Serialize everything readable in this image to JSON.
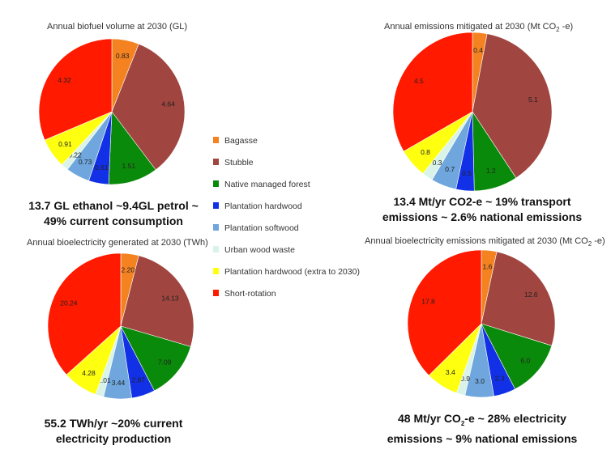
{
  "legend": {
    "items": [
      {
        "label": "Bagasse",
        "color": "#f58220"
      },
      {
        "label": "Stubble",
        "color": "#a0453f"
      },
      {
        "label": "Native managed forest",
        "color": "#0a8a0a"
      },
      {
        "label": "Plantation hardwood",
        "color": "#1230e6"
      },
      {
        "label": "Plantation softwood",
        "color": "#6ea6dd"
      },
      {
        "label": "Urban wood waste",
        "color": "#daf3e8"
      },
      {
        "label": "Plantation hardwood (extra to 2030)",
        "color": "#ffff10"
      },
      {
        "label": "Short-rotation",
        "color": "#ff1a00"
      }
    ]
  },
  "chart_data": [
    {
      "type": "pie",
      "title": "Annual biofuel volume at 2030  (GL)",
      "caption": [
        "13.7 GL ethanol ~9.4GL petrol ~",
        "49% current consumption"
      ],
      "labels": [
        "Bagasse",
        "Stubble",
        "Native managed forest",
        "Plantation hardwood",
        "Plantation softwood",
        "Urban wood waste",
        "Plantation hardwood (extra to 2030)",
        "Short-rotation"
      ],
      "values": [
        0.83,
        4.64,
        1.51,
        0.61,
        0.73,
        0.22,
        0.91,
        4.32
      ],
      "value_labels": [
        "0.83",
        "4.64",
        "1.51",
        "0.61",
        "0.73",
        "0.22",
        "0.91",
        "4.32"
      ]
    },
    {
      "type": "pie",
      "title_parts": [
        "Annual emissions mitigated at 2030 (Mt CO",
        "2",
        " -e)"
      ],
      "caption": [
        "13.4 Mt/yr CO2-e ~ 19% transport",
        "emissions ~ 2.6% national emissions"
      ],
      "labels": [
        "Bagasse",
        "Stubble",
        "Native managed forest",
        "Plantation hardwood",
        "Plantation softwood",
        "Urban wood waste",
        "Plantation hardwood (extra to 2030)",
        "Short-rotation"
      ],
      "values": [
        0.4,
        5.1,
        1.2,
        0.5,
        0.7,
        0.3,
        0.8,
        4.5
      ],
      "value_labels": [
        "0.4",
        "5.1",
        "1.2",
        "0.5",
        "0.7",
        "0.3",
        "0.8",
        "4.5"
      ]
    },
    {
      "type": "pie",
      "title": "Annual bioelectricity generated at 2030  (TWh)",
      "caption": [
        "55.2 TWh/yr ~20% current",
        "electricity production"
      ],
      "labels": [
        "Bagasse",
        "Stubble",
        "Native managed forest",
        "Plantation hardwood",
        "Plantation softwood",
        "Urban wood waste",
        "Plantation hardwood (extra to 2030)",
        "Short-rotation"
      ],
      "values": [
        2.2,
        14.13,
        7.09,
        2.87,
        3.44,
        1.01,
        4.28,
        20.24
      ],
      "value_labels": [
        "2.20",
        "14.13",
        "7.09",
        "2.87",
        "3.44",
        "1.01",
        "4.28",
        "20.24"
      ]
    },
    {
      "type": "pie",
      "title_parts": [
        "Annual bioelectricity emissions mitigated at 2030 (Mt CO",
        "2",
        " -e)"
      ],
      "caption_parts": [
        "48 Mt/yr CO",
        "2",
        "-e ~ 28% electricity"
      ],
      "caption_line2": "emissions ~ 9% national emissions",
      "labels": [
        "Bagasse",
        "Stubble",
        "Native managed forest",
        "Plantation hardwood",
        "Plantation softwood",
        "Urban wood waste",
        "Plantation hardwood (extra to 2030)",
        "Short-rotation"
      ],
      "values": [
        1.6,
        12.6,
        6.0,
        2.3,
        3.0,
        0.9,
        3.4,
        17.8
      ],
      "value_labels": [
        "1.6",
        "12.6",
        "6.0",
        "2.3",
        "3.0",
        "0.9",
        "3.4",
        "17.8"
      ]
    }
  ]
}
